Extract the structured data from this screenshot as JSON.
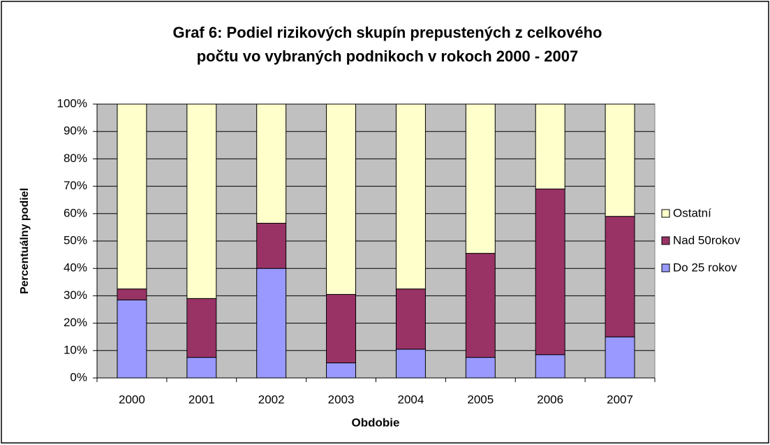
{
  "chart_data": {
    "type": "stacked_bar",
    "title": "Graf 6: Podiel rizikových skupín prepustených z celkového počtu vo vybraných podnikoch v rokoch 2000 - 2007",
    "x_label": "Obdobie",
    "y_label": "Percentuálny podiel",
    "categories": [
      "2000",
      "2001",
      "2002",
      "2003",
      "2004",
      "2005",
      "2006",
      "2007"
    ],
    "series": [
      {
        "name": "Do 25 rokov",
        "color": "#9999ff",
        "values": [
          28.5,
          7.5,
          40,
          5.5,
          10.5,
          7.5,
          8.5,
          15
        ]
      },
      {
        "name": "Nad 50rokov",
        "color": "#993366",
        "values": [
          4,
          21.5,
          16.5,
          25,
          22,
          38,
          60.5,
          44
        ]
      },
      {
        "name": "Ostatní",
        "color": "#ffffcc",
        "values": [
          67.5,
          71,
          43.5,
          69.5,
          67.5,
          54.5,
          31,
          41
        ]
      }
    ],
    "ylim": [
      0,
      100
    ],
    "yticks": [
      {
        "value": 0,
        "label": "0%"
      },
      {
        "value": 10,
        "label": "10%"
      },
      {
        "value": 20,
        "label": "20%"
      },
      {
        "value": 30,
        "label": "30%"
      },
      {
        "value": 40,
        "label": "40%"
      },
      {
        "value": 50,
        "label": "50%"
      },
      {
        "value": 60,
        "label": "60%"
      },
      {
        "value": 70,
        "label": "70%"
      },
      {
        "value": 80,
        "label": "80%"
      },
      {
        "value": 90,
        "label": "90%"
      },
      {
        "value": 100,
        "label": "100%"
      }
    ],
    "grid": true,
    "legend": "right"
  }
}
